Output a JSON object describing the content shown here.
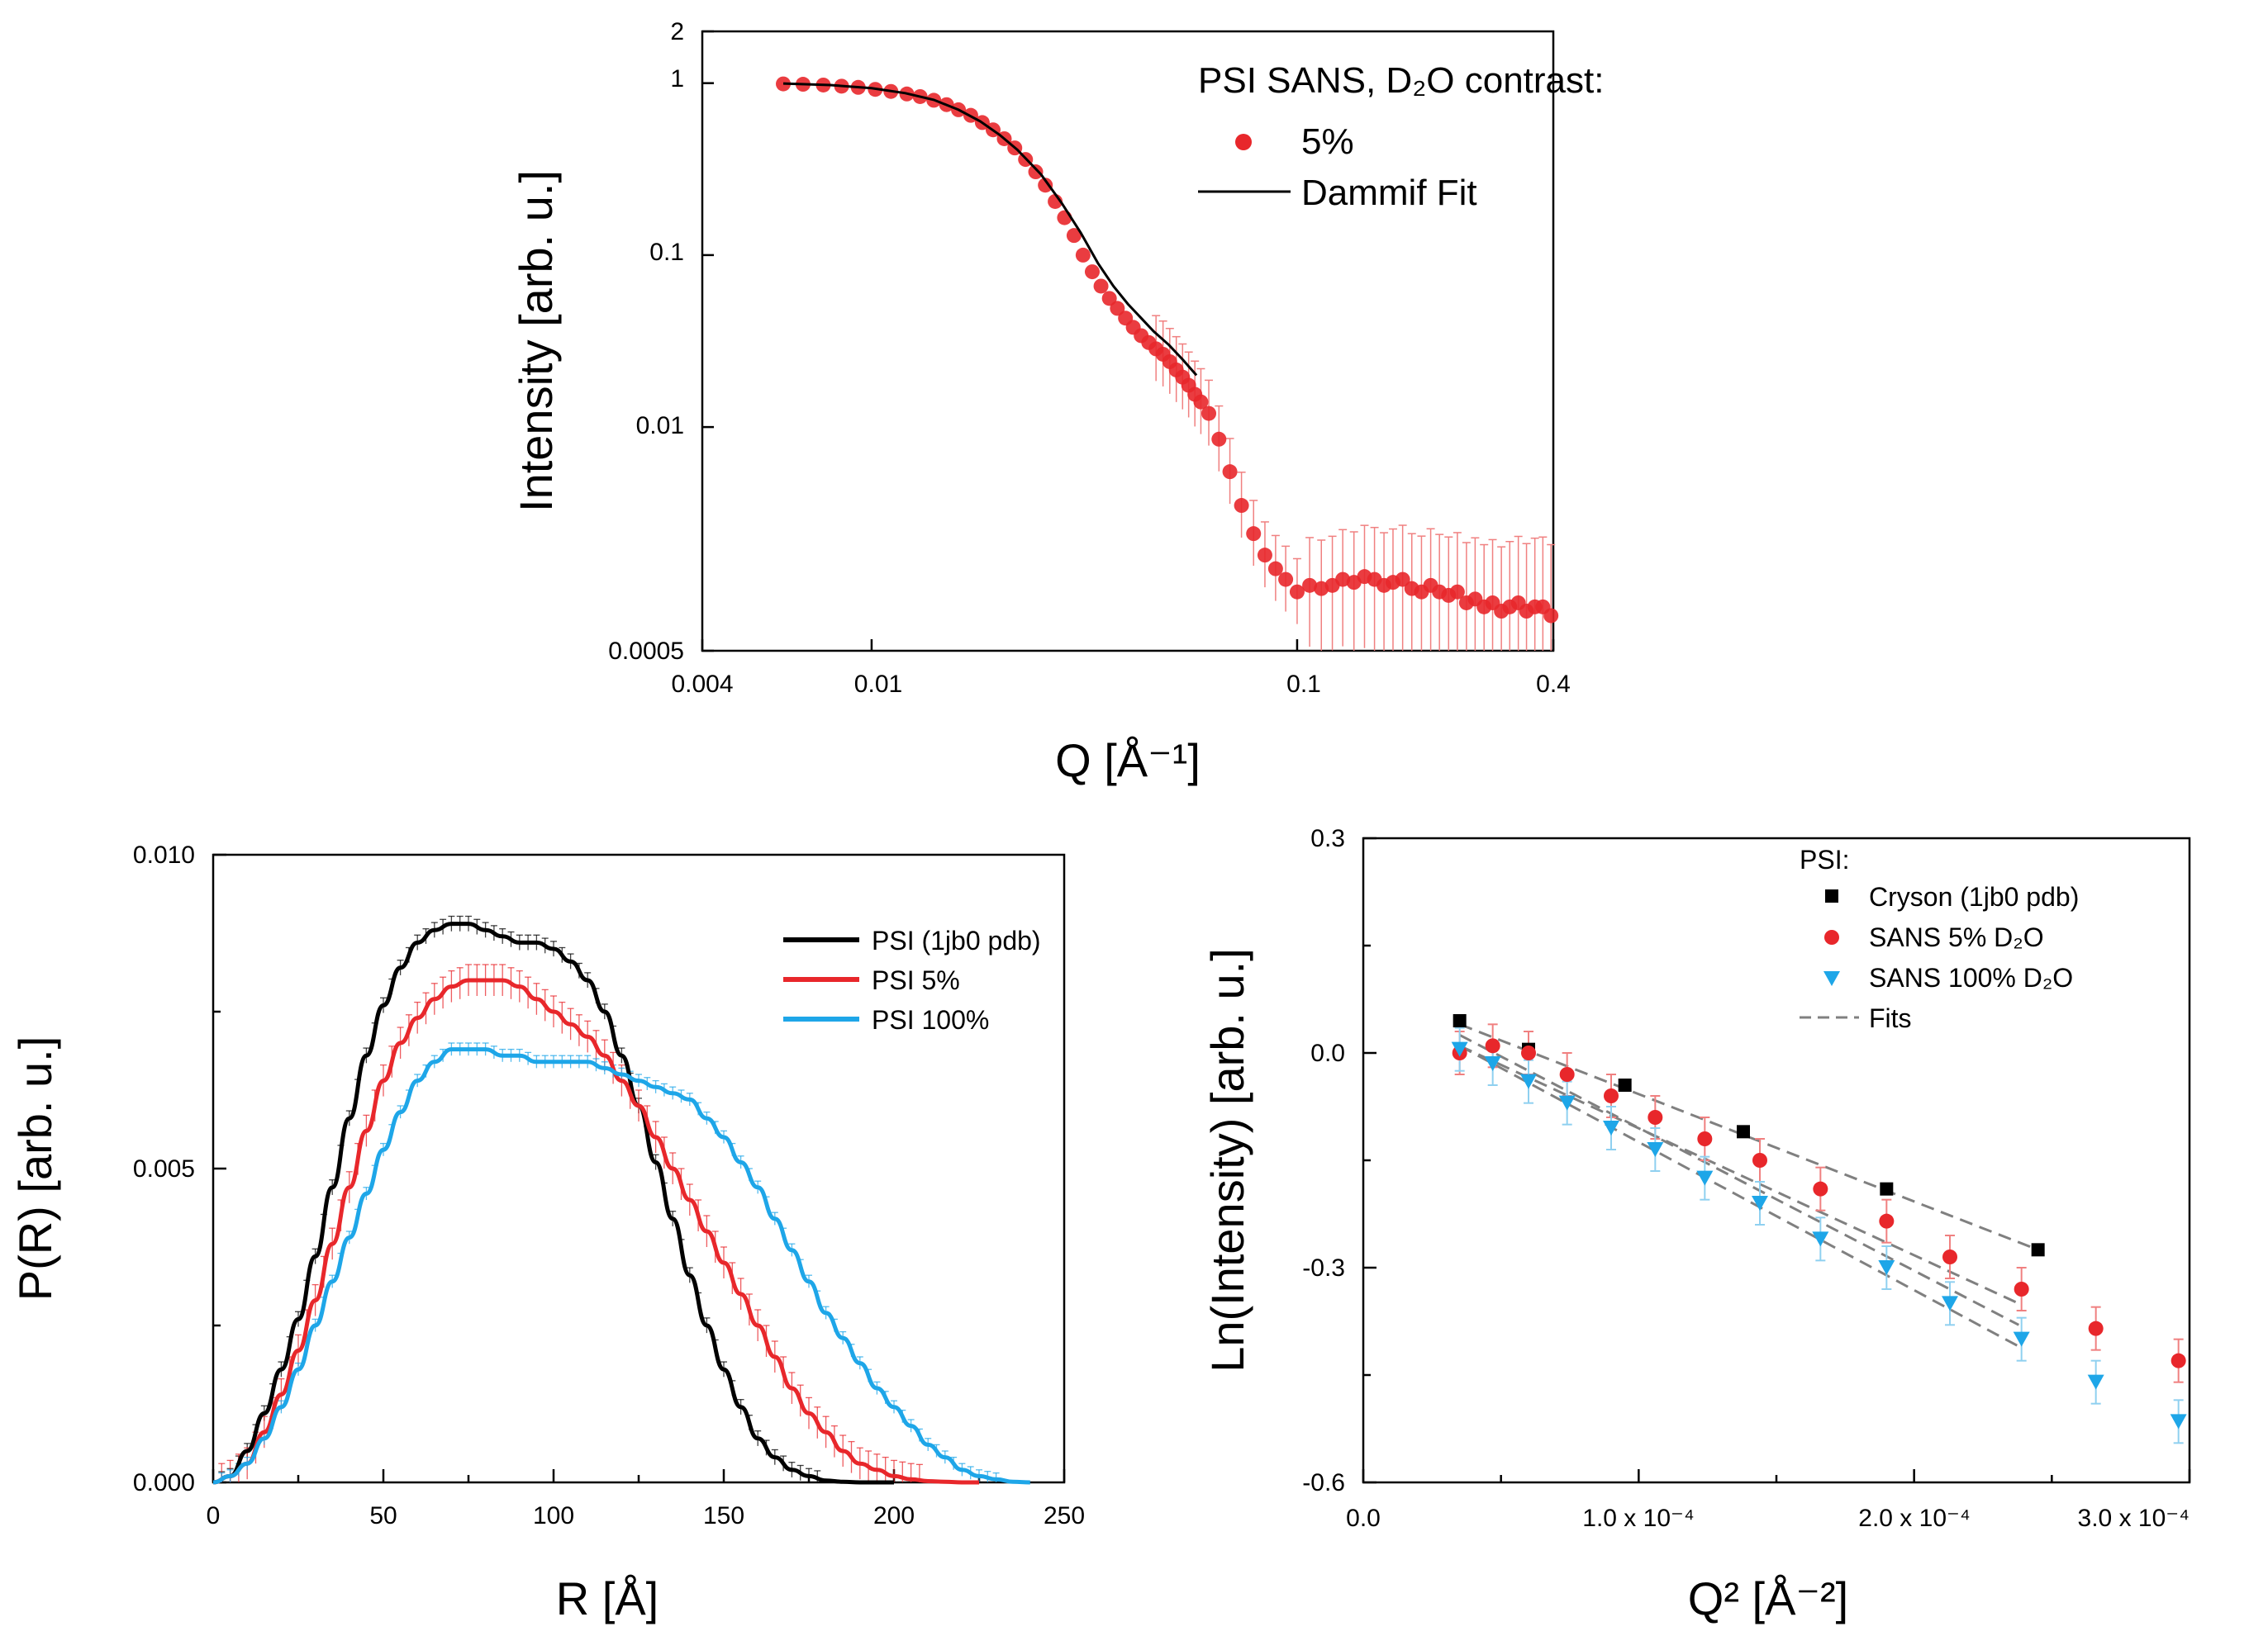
{
  "chart_data": [
    {
      "id": "sans",
      "type": "scatter",
      "title": "",
      "xlabel": "Q [Å⁻¹]",
      "ylabel": "Intensity [arb. u.]",
      "xscale": "log",
      "yscale": "log",
      "xlim": [
        0.004,
        0.4
      ],
      "ylim": [
        0.0005,
        2
      ],
      "xticks": [
        0.004,
        0.01,
        0.1,
        0.4
      ],
      "xtick_labels": [
        "0.004",
        "0.01",
        "0.1",
        "0.4"
      ],
      "yticks": [
        0.0005,
        0.01,
        0.1,
        1,
        2
      ],
      "ytick_labels": [
        "0.0005",
        "0.01",
        "0.1",
        "1",
        "2"
      ],
      "legend_title": "PSI SANS, D₂O contrast:",
      "legend_position": "top-right",
      "series": [
        {
          "name": "5%",
          "style": "markers",
          "color": "#e8272b",
          "x": [
            0.0062,
            0.0069,
            0.0077,
            0.0085,
            0.0093,
            0.0102,
            0.0111,
            0.0121,
            0.013,
            0.014,
            0.015,
            0.016,
            0.0171,
            0.0182,
            0.0193,
            0.0205,
            0.0217,
            0.023,
            0.0243,
            0.0256,
            0.027,
            0.0284,
            0.0299,
            0.0314,
            0.033,
            0.0346,
            0.0362,
            0.0378,
            0.0395,
            0.0412,
            0.043,
            0.0448,
            0.0466,
            0.0484,
            0.0502,
            0.052,
            0.0538,
            0.0556,
            0.0575,
            0.0594,
            0.062,
            0.0655,
            0.0695,
            0.074,
            0.079,
            0.084,
            0.089,
            0.094,
            0.1,
            0.107,
            0.114,
            0.121,
            0.128,
            0.136,
            0.144,
            0.152,
            0.16,
            0.168,
            0.177,
            0.186,
            0.196,
            0.206,
            0.216,
            0.227,
            0.238,
            0.25,
            0.262,
            0.275,
            0.288,
            0.302,
            0.316,
            0.331,
            0.346,
            0.362,
            0.378,
            0.395
          ],
          "y": [
            0.99,
            0.985,
            0.975,
            0.96,
            0.945,
            0.92,
            0.895,
            0.865,
            0.835,
            0.795,
            0.75,
            0.7,
            0.65,
            0.59,
            0.535,
            0.475,
            0.42,
            0.36,
            0.305,
            0.255,
            0.205,
            0.165,
            0.13,
            0.1,
            0.08,
            0.066,
            0.056,
            0.049,
            0.043,
            0.038,
            0.034,
            0.031,
            0.0285,
            0.0265,
            0.024,
            0.0215,
            0.0195,
            0.0175,
            0.0155,
            0.014,
            0.012,
            0.0085,
            0.0055,
            0.0035,
            0.0024,
            0.0018,
            0.0015,
            0.0013,
            0.0011,
            0.0012,
            0.00115,
            0.0012,
            0.0013,
            0.00125,
            0.00135,
            0.0013,
            0.0012,
            0.00125,
            0.0013,
            0.00115,
            0.0011,
            0.0012,
            0.0011,
            0.00105,
            0.0011,
            0.00095,
            0.001,
            0.0009,
            0.00095,
            0.00085,
            0.0009,
            0.00095,
            0.00085,
            0.0009,
            0.0009,
            0.0008
          ],
          "error_frac": 0.35
        },
        {
          "name": "Dammif Fit",
          "style": "line",
          "color": "#000000",
          "x": [
            0.0062,
            0.008,
            0.01,
            0.012,
            0.014,
            0.016,
            0.018,
            0.02,
            0.022,
            0.025,
            0.028,
            0.031,
            0.034,
            0.037,
            0.04,
            0.043,
            0.046,
            0.05,
            0.054,
            0.058
          ],
          "y": [
            0.995,
            0.975,
            0.935,
            0.875,
            0.8,
            0.7,
            0.6,
            0.5,
            0.41,
            0.295,
            0.2,
            0.135,
            0.09,
            0.066,
            0.052,
            0.043,
            0.036,
            0.03,
            0.0245,
            0.02
          ]
        }
      ]
    },
    {
      "id": "pr",
      "type": "line",
      "title": "",
      "xlabel": "R [Å]",
      "ylabel": "P(R) [arb. u.]",
      "xlim": [
        0,
        250
      ],
      "ylim": [
        0,
        0.01
      ],
      "xticks": [
        0,
        50,
        100,
        150,
        200,
        250
      ],
      "xtick_labels": [
        "0",
        "50",
        "100",
        "150",
        "200",
        "250"
      ],
      "yticks": [
        0,
        0.005,
        0.01
      ],
      "ytick_labels": [
        "0.000",
        "0.005",
        "0.010"
      ],
      "legend_position": "top-right",
      "series": [
        {
          "name": "PSI (1jb0 pdb)",
          "color": "#000000",
          "err": 0.00012,
          "x": [
            0,
            5,
            10,
            15,
            20,
            25,
            30,
            35,
            40,
            45,
            50,
            55,
            60,
            65,
            70,
            75,
            80,
            85,
            90,
            95,
            100,
            105,
            110,
            115,
            120,
            125,
            130,
            135,
            140,
            145,
            150,
            155,
            160,
            165,
            170,
            175,
            180,
            185,
            190,
            195,
            200
          ],
          "y": [
            0,
            0.0001,
            0.0005,
            0.0011,
            0.0018,
            0.0026,
            0.0036,
            0.0047,
            0.0058,
            0.0068,
            0.0076,
            0.0082,
            0.0086,
            0.0088,
            0.0089,
            0.0089,
            0.0088,
            0.0087,
            0.0086,
            0.0086,
            0.0085,
            0.0083,
            0.008,
            0.0075,
            0.0068,
            0.006,
            0.0051,
            0.0042,
            0.0033,
            0.0025,
            0.0018,
            0.0012,
            0.0007,
            0.0004,
            0.0002,
            0.0001,
            3e-05,
            1e-05,
            0,
            0,
            0
          ]
        },
        {
          "name": "PSI  5%",
          "color": "#e8272b",
          "err": 0.00025,
          "x": [
            0,
            5,
            10,
            15,
            20,
            25,
            30,
            35,
            40,
            45,
            50,
            55,
            60,
            65,
            70,
            75,
            80,
            85,
            90,
            95,
            100,
            105,
            110,
            115,
            120,
            125,
            130,
            135,
            140,
            145,
            150,
            155,
            160,
            165,
            170,
            175,
            180,
            185,
            190,
            195,
            200,
            205,
            210,
            215,
            220,
            225
          ],
          "y": [
            0,
            0.0001,
            0.0003,
            0.0008,
            0.0014,
            0.0021,
            0.0029,
            0.0038,
            0.0047,
            0.0056,
            0.0064,
            0.007,
            0.0074,
            0.0077,
            0.0079,
            0.008,
            0.008,
            0.008,
            0.0079,
            0.0077,
            0.0075,
            0.0073,
            0.0071,
            0.0068,
            0.0064,
            0.006,
            0.0055,
            0.005,
            0.0045,
            0.004,
            0.0035,
            0.003,
            0.0025,
            0.002,
            0.0015,
            0.0011,
            0.0008,
            0.0005,
            0.0003,
            0.0002,
            0.0001,
            5e-05,
            2e-05,
            1e-05,
            0,
            0
          ]
        },
        {
          "name": "PSI 100%",
          "color": "#1ea6e8",
          "err": 0.0001,
          "x": [
            0,
            5,
            10,
            15,
            20,
            25,
            30,
            35,
            40,
            45,
            50,
            55,
            60,
            65,
            70,
            75,
            80,
            85,
            90,
            95,
            100,
            105,
            110,
            115,
            120,
            125,
            130,
            135,
            140,
            145,
            150,
            155,
            160,
            165,
            170,
            175,
            180,
            185,
            190,
            195,
            200,
            205,
            210,
            215,
            220,
            225,
            230,
            235,
            240
          ],
          "y": [
            0,
            0.0001,
            0.0003,
            0.0007,
            0.0012,
            0.0018,
            0.0025,
            0.0032,
            0.0039,
            0.0046,
            0.0053,
            0.0059,
            0.0064,
            0.0067,
            0.0069,
            0.0069,
            0.0069,
            0.0068,
            0.0068,
            0.0067,
            0.0067,
            0.0067,
            0.0067,
            0.0066,
            0.0065,
            0.0064,
            0.0063,
            0.0062,
            0.0061,
            0.0058,
            0.0055,
            0.0051,
            0.0047,
            0.0042,
            0.0037,
            0.0032,
            0.0027,
            0.0023,
            0.0019,
            0.0015,
            0.0012,
            0.0009,
            0.0006,
            0.0004,
            0.0002,
            0.0001,
            5e-05,
            1e-05,
            0
          ]
        }
      ]
    },
    {
      "id": "guinier",
      "type": "scatter",
      "title": "",
      "xlabel": "Q² [Å⁻²]",
      "ylabel": "Ln(Intensity) [arb. u.]",
      "xlim": [
        0,
        0.0003
      ],
      "ylim": [
        -0.6,
        0.3
      ],
      "xticks": [
        0,
        0.0001,
        0.0002,
        0.0003
      ],
      "xtick_labels": [
        "0.0",
        "1.0 x 10⁻⁴",
        "2.0 x 10⁻⁴",
        "3.0 x 10⁻⁴"
      ],
      "yticks": [
        -0.6,
        -0.3,
        0.0,
        0.3
      ],
      "ytick_labels": [
        "-0.6",
        "-0.3",
        "0.0",
        "0.3"
      ],
      "legend_title": "PSI:",
      "legend_position": "top-right",
      "series": [
        {
          "name": "Cryson (1jb0 pdb)",
          "marker": "square",
          "color": "#000000",
          "x": [
            3.5e-05,
            6e-05,
            9.5e-05,
            0.000138,
            0.00019,
            0.000245
          ],
          "y": [
            0.045,
            0.005,
            -0.045,
            -0.11,
            -0.19,
            -0.275
          ],
          "err": [
            0,
            0,
            0,
            0,
            0,
            0
          ]
        },
        {
          "name": "SANS  5% D₂O",
          "marker": "circle",
          "color": "#e8272b",
          "x": [
            3.5e-05,
            4.7e-05,
            6e-05,
            7.4e-05,
            9e-05,
            0.000106,
            0.000124,
            0.000144,
            0.000166,
            0.00019,
            0.000213,
            0.000239,
            0.000266,
            0.000296
          ],
          "y": [
            0.0,
            0.01,
            0.0,
            -0.03,
            -0.06,
            -0.09,
            -0.12,
            -0.15,
            -0.19,
            -0.235,
            -0.285,
            -0.33,
            -0.385,
            -0.43
          ],
          "err": [
            0.03,
            0.03,
            0.03,
            0.03,
            0.03,
            0.03,
            0.03,
            0.03,
            0.03,
            0.03,
            0.03,
            0.03,
            0.03,
            0.03
          ]
        },
        {
          "name": "SANS 100% D₂O",
          "marker": "triangle-down",
          "color": "#1ea6e8",
          "x": [
            3.5e-05,
            4.7e-05,
            6e-05,
            7.4e-05,
            9e-05,
            0.000106,
            0.000124,
            0.000144,
            0.000166,
            0.00019,
            0.000213,
            0.000239,
            0.000266,
            0.000296
          ],
          "y": [
            0.005,
            -0.015,
            -0.04,
            -0.07,
            -0.105,
            -0.135,
            -0.175,
            -0.21,
            -0.26,
            -0.3,
            -0.35,
            -0.4,
            -0.46,
            -0.515
          ],
          "err": [
            0.03,
            0.03,
            0.03,
            0.03,
            0.03,
            0.03,
            0.03,
            0.03,
            0.03,
            0.03,
            0.03,
            0.03,
            0.03,
            0.03
          ]
        }
      ],
      "fits": {
        "name": "Fits",
        "color": "#808080",
        "lines": [
          {
            "x": [
              3.5e-05,
              0.000245
            ],
            "y": [
              0.04,
              -0.275
            ]
          },
          {
            "x": [
              3.5e-05,
              0.000238
            ],
            "y": [
              0.01,
              -0.35
            ]
          },
          {
            "x": [
              3.5e-05,
              0.000238
            ],
            "y": [
              0.025,
              -0.38
            ]
          },
          {
            "x": [
              3.5e-05,
              0.000238
            ],
            "y": [
              0.01,
              -0.41
            ]
          }
        ]
      }
    }
  ]
}
